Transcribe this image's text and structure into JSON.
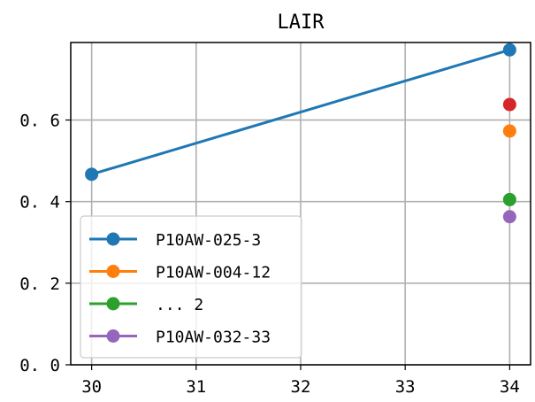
{
  "chart_data": {
    "type": "line",
    "title": "LAIR",
    "xlabel": "",
    "ylabel": "",
    "xlim": [
      29.8,
      34.2
    ],
    "ylim": [
      0.0,
      0.79
    ],
    "xticks": [
      30,
      31,
      32,
      33,
      34
    ],
    "xtick_labels": [
      "30",
      "31",
      "32",
      "33",
      "34"
    ],
    "yticks": [
      0.0,
      0.2,
      0.4,
      0.6
    ],
    "ytick_labels": [
      "0. 0",
      "0. 2",
      "0. 4",
      "0. 6"
    ],
    "grid": true,
    "legend_position": "lower-left",
    "series": [
      {
        "name": "P10AW-025-3",
        "color": "#1f77b4",
        "x": [
          30,
          34
        ],
        "y": [
          0.467,
          0.772
        ]
      },
      {
        "name": "P10AW-004-12",
        "color": "#ff7f0e",
        "x": [
          34
        ],
        "y": [
          0.573
        ]
      },
      {
        "name": "... 2",
        "color": "#2ca02c",
        "x": [
          34
        ],
        "y": [
          0.405
        ]
      },
      {
        "name": "",
        "color": "#d62728",
        "x": [
          34
        ],
        "y": [
          0.638
        ]
      },
      {
        "name": "P10AW-032-33",
        "color": "#9467bd",
        "x": [
          34
        ],
        "y": [
          0.363
        ]
      }
    ]
  }
}
